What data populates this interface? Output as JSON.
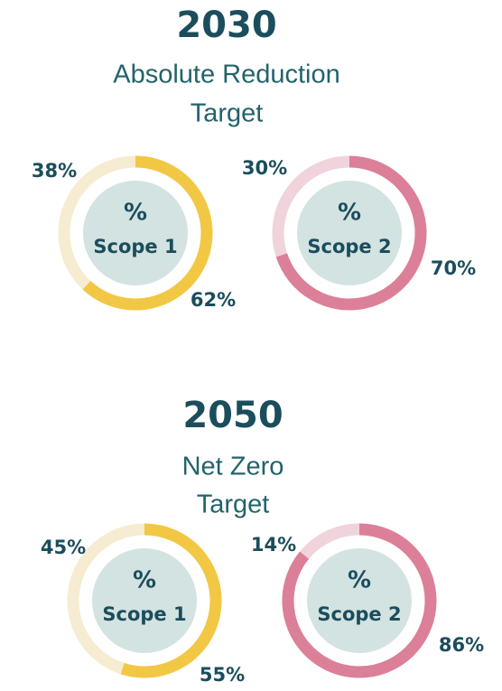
{
  "sections": [
    {
      "title": "2030",
      "subtitle": [
        "Absolute Reduction",
        "Target"
      ]
    },
    {
      "title": "2050",
      "subtitle": [
        "Net Zero",
        "Target"
      ]
    }
  ],
  "chart_data": [
    {
      "type": "donut",
      "center": [
        "%",
        "Scope 1"
      ],
      "values": [
        62,
        38
      ],
      "value_labels": [
        "62%",
        "38%"
      ],
      "colors": [
        "#f2c744",
        "#f6ecd2"
      ]
    },
    {
      "type": "donut",
      "center": [
        "%",
        "Scope 2"
      ],
      "values": [
        70,
        30
      ],
      "value_labels": [
        "70%",
        "30%"
      ],
      "colors": [
        "#dc7f98",
        "#f0d3db"
      ]
    },
    {
      "type": "donut",
      "center": [
        "%",
        "Scope 1"
      ],
      "values": [
        55,
        45
      ],
      "value_labels": [
        "55%",
        "45%"
      ],
      "colors": [
        "#f2c744",
        "#f6ecd2"
      ]
    },
    {
      "type": "donut",
      "center": [
        "%",
        "Scope 2"
      ],
      "values": [
        86,
        14
      ],
      "value_labels": [
        "86%",
        "14%"
      ],
      "colors": [
        "#dc7f98",
        "#f0d3db"
      ]
    }
  ]
}
